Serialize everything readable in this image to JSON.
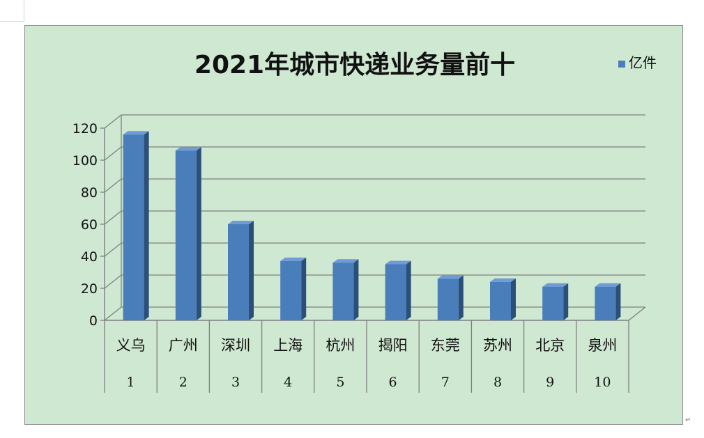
{
  "chart_data": {
    "type": "bar",
    "title": "2021年城市快递业务量前十",
    "categories": [
      "义乌",
      "广州",
      "深圳",
      "上海",
      "杭州",
      "揭阳",
      "东莞",
      "苏州",
      "北京",
      "泉州"
    ],
    "category_ranks": [
      "1",
      "2",
      "3",
      "4",
      "5",
      "6",
      "7",
      "8",
      "9",
      "10"
    ],
    "series": [
      {
        "name": "亿件",
        "values": [
          116,
          106,
          60,
          37,
          36,
          35,
          26,
          24,
          21,
          21
        ]
      }
    ],
    "ylim": [
      0,
      120
    ],
    "yticks": [
      "0",
      "20",
      "40",
      "60",
      "80",
      "100",
      "120"
    ],
    "grid": true,
    "legend_position": "top-right",
    "colors": {
      "bar_front": "#4a7ebb",
      "bar_side": "#2c4f7a",
      "bar_top": "#6f9bd6",
      "background": "#cfe8d1",
      "grid": "#7f7f7f"
    }
  },
  "page": {
    "para_mark": "↵"
  }
}
